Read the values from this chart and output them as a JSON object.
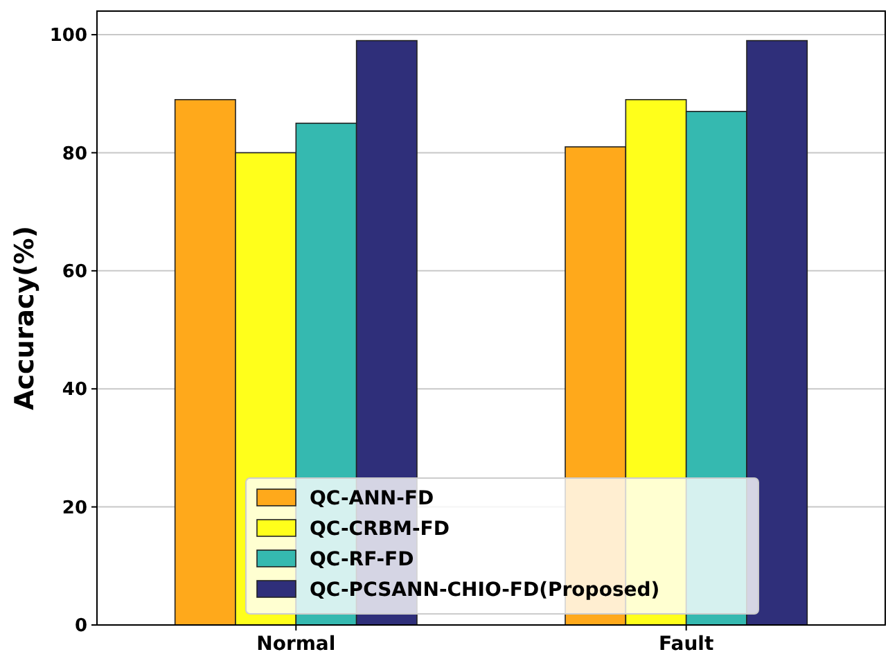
{
  "chart_data": {
    "type": "bar",
    "ylabel": "Accuracy(%)",
    "categories": [
      "Normal",
      "Fault"
    ],
    "series": [
      {
        "name": "QC-ANN-FD",
        "color": "#ffa91b",
        "values": [
          89,
          81
        ]
      },
      {
        "name": "QC-CRBM-FD",
        "color": "#ffff1b",
        "values": [
          80,
          89
        ]
      },
      {
        "name": "QC-RF-FD",
        "color": "#35b9b0",
        "values": [
          85,
          87
        ]
      },
      {
        "name": "QC-PCSANN-CHIO-FD(Proposed)",
        "color": "#2f2f7a",
        "values": [
          99,
          99
        ]
      }
    ],
    "ylim": [
      0,
      104
    ],
    "yticks": [
      0,
      20,
      40,
      60,
      80,
      100
    ],
    "grid": "y",
    "legend": "bottom"
  }
}
